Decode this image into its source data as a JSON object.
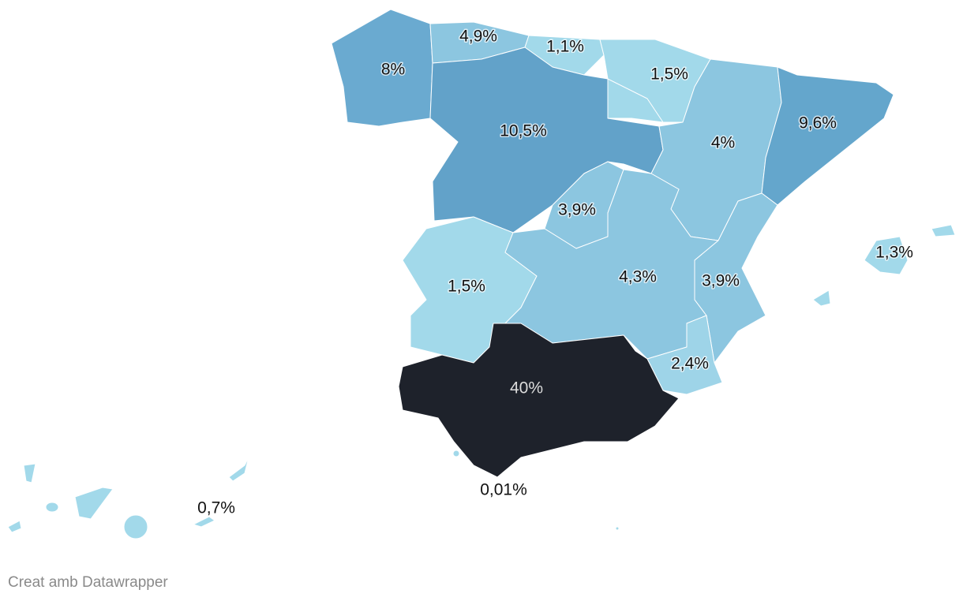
{
  "chart_data": {
    "type": "choropleth",
    "values": [
      8,
      4.9,
      1.1,
      1.5,
      10.5,
      4,
      9.6,
      3.9,
      1.5,
      4.3,
      3.9,
      2.4,
      40,
      1.3,
      0.7,
      0.01
    ],
    "value_labels": [
      "8%",
      "4,9%",
      "1,1%",
      "1,5%",
      "10,5%",
      "4%",
      "9,6%",
      "3,9%",
      "1,5%",
      "4,3%",
      "3,9%",
      "2,4%",
      "40%",
      "1,3%",
      "0,7%",
      "0,01%"
    ],
    "colors": [
      "#6aaad0",
      "#8cc6e0",
      "#a2d9ea",
      "#a2d9ea",
      "#62a2c9",
      "#8cc6e0",
      "#64a6cc",
      "#8cc6e0",
      "#a2d9ea",
      "#8cc6e0",
      "#8cc6e0",
      "#9ed4e8",
      "#1e222b",
      "#a2d9ea",
      "#a2d9ea",
      "#a2d9ea"
    ],
    "credit": "Creat amb Datawrapper"
  }
}
